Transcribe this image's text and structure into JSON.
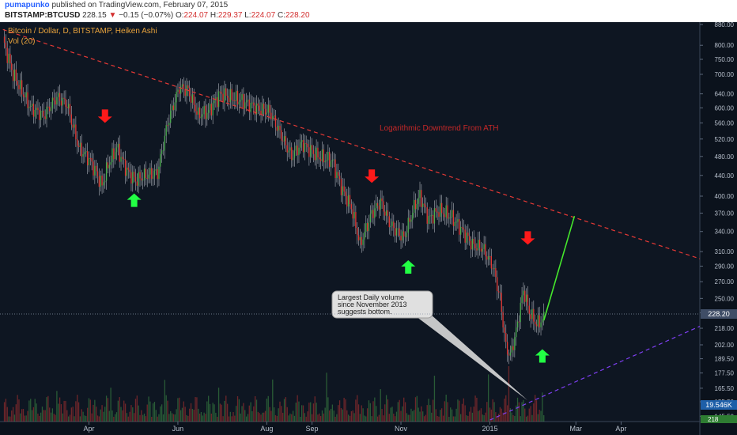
{
  "header": {
    "author": "pumapunko",
    "published": "published on TradingView.com, February 07, 2015",
    "symbol": "BITSTAMP:BTCUSD",
    "last": "228.15",
    "change_arrow": "▼",
    "change": "−0.15 (−0.07%)",
    "o_label": "O:",
    "o": "224.07",
    "h_label": "H:",
    "h": "229.37",
    "l_label": "L:",
    "l": "224.07",
    "c_label": "C:",
    "c": "228.20"
  },
  "colors": {
    "background": "#0e1622",
    "up": "#4caf50",
    "down": "#e53935",
    "downtrend": "#e53935",
    "support": "#7e3ff2",
    "projection": "#45e82c",
    "arrow_down": "#ff1a1a",
    "arrow_up": "#22ff44",
    "text": "#e8a33c"
  },
  "chart_data": {
    "type": "candlestick",
    "title": "Bitcoin / Dollar, D, BITSTAMP, Heiken Ashi",
    "indicator": "Vol (20)",
    "y_scale": "log",
    "y_ticks": [
      880,
      800,
      750,
      700,
      640,
      600,
      560,
      520,
      480,
      440,
      400,
      370,
      340,
      310,
      290,
      270,
      250,
      234,
      218,
      202,
      189.5,
      177.5,
      165.5,
      155.5,
      145.5
    ],
    "x_ticks": [
      "Apr",
      "Jun",
      "Aug",
      "Sep",
      "Nov",
      "2015",
      "Mar",
      "Apr"
    ],
    "last_price_label": "228.20",
    "volume_label": "19.546K",
    "volume_extra_label": "218",
    "annotations": [
      {
        "text": "Logarithmic Downtrend From ATH"
      },
      {
        "lines": [
          "Largest Daily volume",
          "since November 2013",
          "suggests bottom."
        ]
      }
    ],
    "price_path": [
      [
        "2014-02-01",
        820
      ],
      [
        "2014-02-08",
        700
      ],
      [
        "2014-02-20",
        600
      ],
      [
        "2014-03-01",
        580
      ],
      [
        "2014-03-10",
        630
      ],
      [
        "2014-03-17",
        610
      ],
      [
        "2014-03-25",
        500
      ],
      [
        "2014-04-02",
        470
      ],
      [
        "2014-04-10",
        420
      ],
      [
        "2014-04-14",
        460
      ],
      [
        "2014-04-20",
        500
      ],
      [
        "2014-04-27",
        450
      ],
      [
        "2014-05-03",
        430
      ],
      [
        "2014-05-10",
        440
      ],
      [
        "2014-05-18",
        445
      ],
      [
        "2014-05-25",
        560
      ],
      [
        "2014-06-02",
        660
      ],
      [
        "2014-06-08",
        650
      ],
      [
        "2014-06-15",
        580
      ],
      [
        "2014-06-22",
        590
      ],
      [
        "2014-06-30",
        640
      ],
      [
        "2014-07-07",
        630
      ],
      [
        "2014-07-15",
        620
      ],
      [
        "2014-07-25",
        600
      ],
      [
        "2014-08-03",
        590
      ],
      [
        "2014-08-12",
        520
      ],
      [
        "2014-08-18",
        480
      ],
      [
        "2014-08-25",
        510
      ],
      [
        "2014-09-05",
        480
      ],
      [
        "2014-09-15",
        470
      ],
      [
        "2014-09-22",
        410
      ],
      [
        "2014-09-28",
        380
      ],
      [
        "2014-10-04",
        320
      ],
      [
        "2014-10-12",
        370
      ],
      [
        "2014-10-18",
        390
      ],
      [
        "2014-10-25",
        350
      ],
      [
        "2014-11-03",
        330
      ],
      [
        "2014-11-10",
        380
      ],
      [
        "2014-11-14",
        400
      ],
      [
        "2014-11-20",
        360
      ],
      [
        "2014-11-27",
        375
      ],
      [
        "2014-12-05",
        365
      ],
      [
        "2014-12-12",
        345
      ],
      [
        "2014-12-20",
        320
      ],
      [
        "2014-12-27",
        315
      ],
      [
        "2015-01-03",
        290
      ],
      [
        "2015-01-08",
        250
      ],
      [
        "2015-01-12",
        200
      ],
      [
        "2015-01-15",
        192
      ],
      [
        "2015-01-19",
        215
      ],
      [
        "2015-01-24",
        260
      ],
      [
        "2015-01-28",
        235
      ],
      [
        "2015-02-02",
        222
      ],
      [
        "2015-02-07",
        228
      ]
    ],
    "trend_lines": [
      {
        "name": "ath-downtrend",
        "from": [
          "2014-02-01",
          860
        ],
        "to": [
          "2015-05-25",
          300
        ]
      },
      {
        "name": "support-trend",
        "from": [
          "2015-01-01",
          143
        ],
        "to": [
          "2015-05-25",
          220
        ]
      },
      {
        "name": "projection",
        "from": [
          "2015-02-07",
          226
        ],
        "to": [
          "2015-02-28",
          365
        ]
      }
    ],
    "arrows": [
      {
        "dir": "down",
        "date": "2014-04-12",
        "price": 560
      },
      {
        "dir": "up",
        "date": "2014-05-02",
        "price": 405
      },
      {
        "dir": "down",
        "date": "2014-10-12",
        "price": 425
      },
      {
        "dir": "up",
        "date": "2014-11-06",
        "price": 298
      },
      {
        "dir": "down",
        "date": "2015-01-27",
        "price": 320
      },
      {
        "dir": "up",
        "date": "2015-02-06",
        "price": 198
      }
    ]
  }
}
